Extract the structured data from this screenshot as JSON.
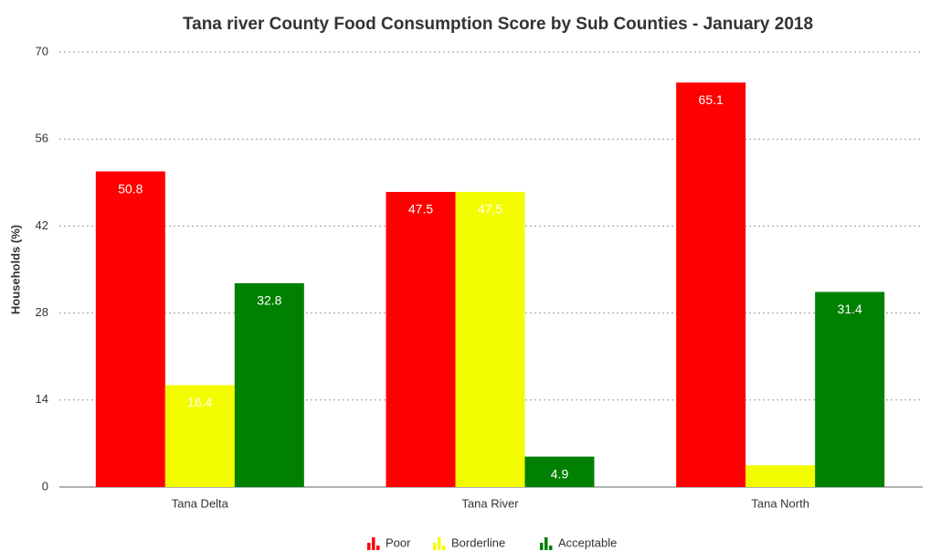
{
  "chart_data": {
    "type": "bar",
    "title": "Tana river County Food Consumption Score by Sub Counties - January 2018",
    "y_label": "Households (%)",
    "categories": [
      "Tana Delta",
      "Tana River",
      "Tana North"
    ],
    "series": [
      {
        "name": "Poor",
        "color": "#ff0000",
        "values": [
          50.8,
          47.5,
          65.1
        ]
      },
      {
        "name": "Borderline",
        "color": "#f4fc00",
        "values": [
          16.4,
          47.5,
          3.5
        ],
        "value_labels": [
          "16.4",
          "47.5",
          null
        ]
      },
      {
        "name": "Acceptable",
        "color": "#008000",
        "values": [
          32.8,
          4.9,
          31.4
        ]
      }
    ],
    "ylim": [
      0,
      70
    ],
    "yticks": [
      0,
      14,
      28,
      42,
      56,
      70
    ],
    "grid": true,
    "legend": "bottom"
  }
}
